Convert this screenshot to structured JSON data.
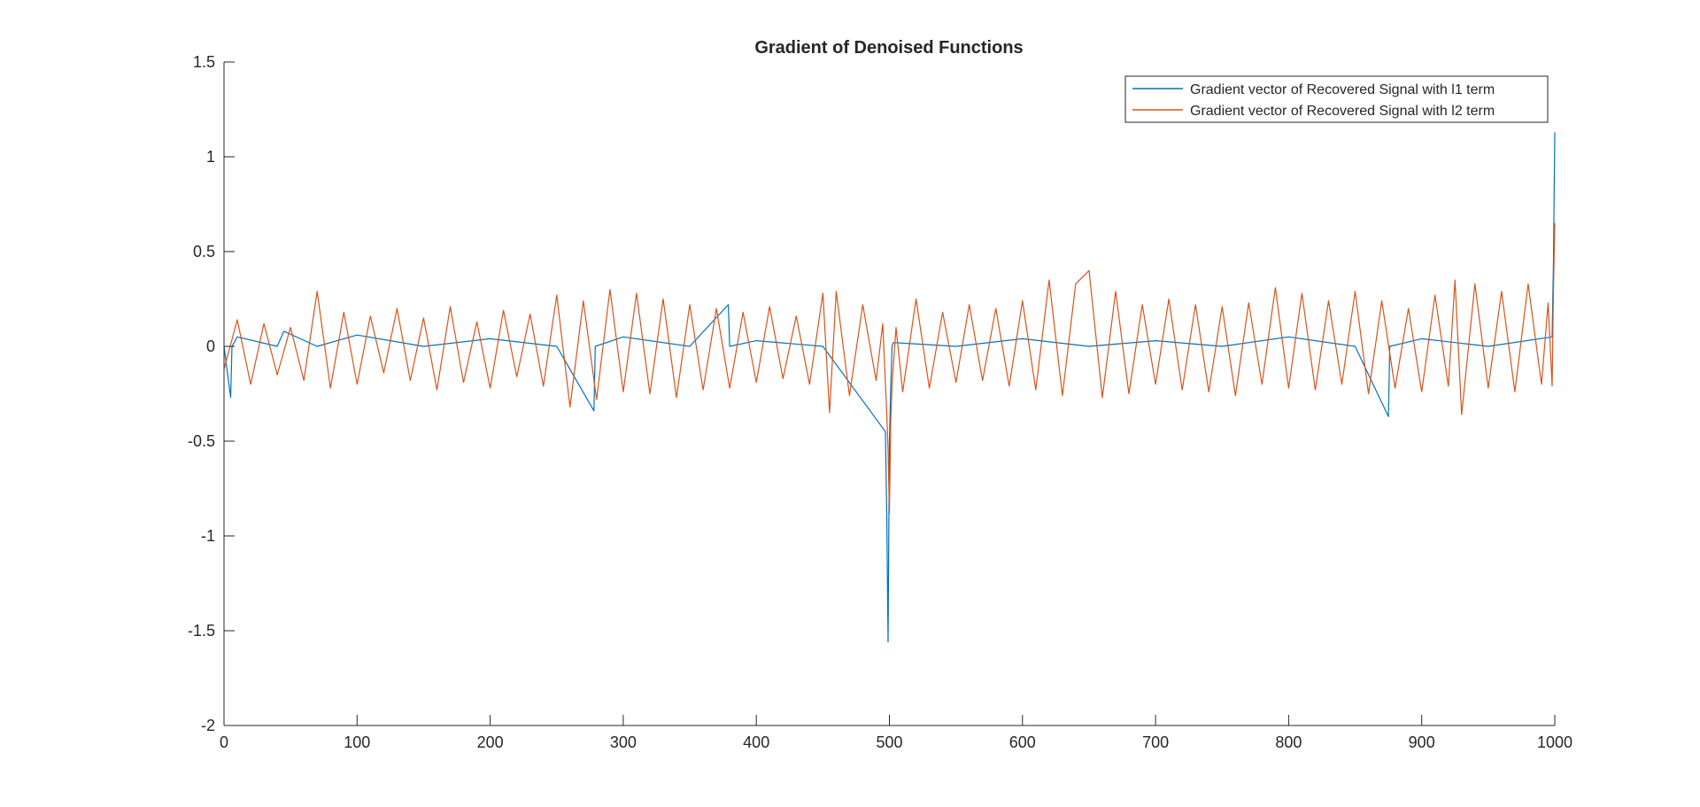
{
  "chart_data": {
    "type": "line",
    "title": "Gradient of Denoised Functions",
    "xlabel": "",
    "ylabel": "",
    "xlim": [
      0,
      1000
    ],
    "ylim": [
      -2,
      1.5
    ],
    "x_ticks": [
      0,
      100,
      200,
      300,
      400,
      500,
      600,
      700,
      800,
      900,
      1000
    ],
    "y_ticks": [
      1.5,
      1,
      0.5,
      0,
      -0.5,
      -1,
      -1.5,
      -2
    ],
    "x_tick_labels": [
      "0",
      "100",
      "200",
      "300",
      "400",
      "500",
      "600",
      "700",
      "800",
      "900",
      "1000"
    ],
    "y_tick_labels": [
      "1.5",
      "1",
      "0.5",
      "0",
      "-0.5",
      "-1",
      "-1.5",
      "-2"
    ],
    "grid": false,
    "legend_position": "top-right",
    "series": [
      {
        "name": "Gradient vector of Recovered Signal with l1 term",
        "color": "#0072BD",
        "x": [
          0,
          5,
          6,
          10,
          40,
          45,
          70,
          100,
          150,
          200,
          250,
          278,
          279,
          300,
          350,
          379,
          380,
          400,
          450,
          497,
          498,
          499,
          500,
          501,
          502,
          503,
          550,
          600,
          650,
          700,
          750,
          800,
          850,
          875,
          876,
          900,
          950,
          998,
          999,
          1000
        ],
        "y": [
          0,
          -0.27,
          0,
          0.05,
          0,
          0.08,
          0,
          0.06,
          0,
          0.04,
          0,
          -0.34,
          0,
          0.05,
          0,
          0.22,
          0,
          0.03,
          0,
          -0.45,
          -0.88,
          -1.56,
          -0.5,
          -0.22,
          0,
          0.02,
          0,
          0.04,
          0,
          0.03,
          0,
          0.05,
          0,
          -0.37,
          0,
          0.04,
          0,
          0.05,
          0.45,
          1.13
        ]
      },
      {
        "name": "Gradient vector of Recovered Signal with l2 term",
        "color": "#D95319",
        "x": [
          0,
          10,
          20,
          30,
          40,
          50,
          60,
          70,
          80,
          90,
          100,
          110,
          120,
          130,
          140,
          150,
          160,
          170,
          180,
          190,
          200,
          210,
          220,
          230,
          240,
          250,
          260,
          270,
          280,
          290,
          300,
          310,
          320,
          330,
          340,
          350,
          360,
          370,
          380,
          390,
          400,
          410,
          420,
          430,
          440,
          450,
          455,
          460,
          470,
          480,
          490,
          495,
          498,
          499,
          500,
          501,
          502,
          505,
          510,
          520,
          530,
          540,
          550,
          560,
          570,
          580,
          590,
          600,
          610,
          620,
          630,
          640,
          650,
          660,
          670,
          680,
          690,
          700,
          710,
          720,
          730,
          740,
          750,
          760,
          770,
          780,
          790,
          800,
          810,
          820,
          830,
          840,
          850,
          860,
          870,
          880,
          890,
          900,
          910,
          920,
          925,
          930,
          940,
          950,
          960,
          970,
          980,
          990,
          995,
          998,
          999,
          1000
        ],
        "y": [
          -0.12,
          0.14,
          -0.2,
          0.12,
          -0.15,
          0.1,
          -0.18,
          0.29,
          -0.22,
          0.18,
          -0.2,
          0.16,
          -0.14,
          0.2,
          -0.18,
          0.15,
          -0.23,
          0.21,
          -0.19,
          0.13,
          -0.22,
          0.19,
          -0.16,
          0.17,
          -0.21,
          0.27,
          -0.32,
          0.24,
          -0.28,
          0.3,
          -0.24,
          0.28,
          -0.25,
          0.25,
          -0.27,
          0.22,
          -0.23,
          0.2,
          -0.22,
          0.18,
          -0.19,
          0.21,
          -0.17,
          0.16,
          -0.2,
          0.28,
          -0.35,
          0.29,
          -0.26,
          0.22,
          -0.18,
          0.12,
          -0.35,
          -0.55,
          -0.88,
          -0.4,
          -0.2,
          0.1,
          -0.24,
          0.25,
          -0.22,
          0.18,
          -0.19,
          0.22,
          -0.18,
          0.2,
          -0.21,
          0.24,
          -0.23,
          0.35,
          -0.26,
          0.33,
          0.4,
          -0.27,
          0.29,
          -0.25,
          0.22,
          -0.2,
          0.25,
          -0.23,
          0.22,
          -0.24,
          0.21,
          -0.26,
          0.23,
          -0.2,
          0.31,
          -0.22,
          0.28,
          -0.23,
          0.24,
          -0.2,
          0.29,
          -0.25,
          0.24,
          -0.22,
          0.2,
          -0.24,
          0.27,
          -0.21,
          0.35,
          -0.36,
          0.33,
          -0.22,
          0.29,
          -0.24,
          0.33,
          -0.2,
          0.23,
          -0.21,
          0.3,
          0.65
        ]
      }
    ]
  }
}
